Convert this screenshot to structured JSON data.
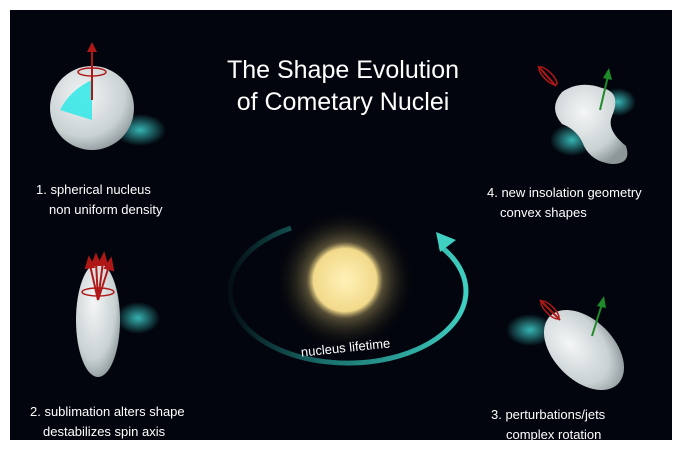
{
  "title": [
    "The Shape Evolution",
    "of Cometary Nuclei"
  ],
  "stages": [
    {
      "label": [
        "1. spherical nucleus",
        "non uniform density"
      ]
    },
    {
      "label": [
        "2. sublimation alters shape",
        "destabilizes spin axis"
      ]
    },
    {
      "label": [
        "3. perturbations/jets",
        "complex rotation"
      ]
    },
    {
      "label": [
        "4. new insolation geometry",
        "convex shapes"
      ]
    }
  ],
  "arc_label": "nucleus lifetime"
}
